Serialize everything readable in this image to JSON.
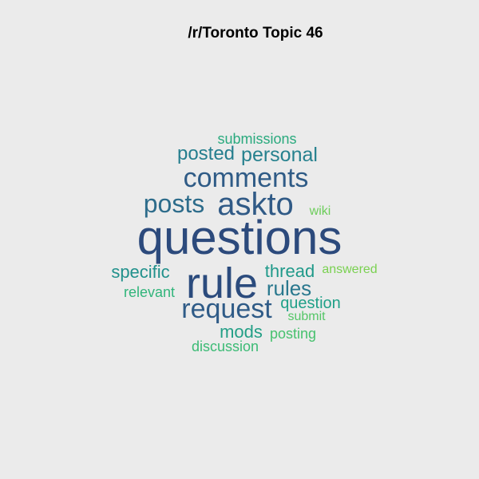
{
  "title": "/r/Toronto Topic 46",
  "words": [
    {
      "text": "questions",
      "color": "#2c4a7c"
    },
    {
      "text": "rule",
      "color": "#2b4b7d"
    },
    {
      "text": "comments",
      "color": "#2f5b86"
    },
    {
      "text": "askto",
      "color": "#305a86"
    },
    {
      "text": "request",
      "color": "#2f5b87"
    },
    {
      "text": "posts",
      "color": "#2d6c8b"
    },
    {
      "text": "rules",
      "color": "#2a788e"
    },
    {
      "text": "posted",
      "color": "#257e8e"
    },
    {
      "text": "personal",
      "color": "#26818e"
    },
    {
      "text": "specific",
      "color": "#21918c"
    },
    {
      "text": "thread",
      "color": "#209a8a"
    },
    {
      "text": "question",
      "color": "#1fa088"
    },
    {
      "text": "mods",
      "color": "#239f86"
    },
    {
      "text": "submissions",
      "color": "#2aaa7e"
    },
    {
      "text": "relevant",
      "color": "#31b57b"
    },
    {
      "text": "discussion",
      "color": "#3bbb75"
    },
    {
      "text": "posting",
      "color": "#47c16e"
    },
    {
      "text": "submit",
      "color": "#55c667"
    },
    {
      "text": "wiki",
      "color": "#6ccd5a"
    },
    {
      "text": "answered",
      "color": "#7ad151"
    }
  ]
}
